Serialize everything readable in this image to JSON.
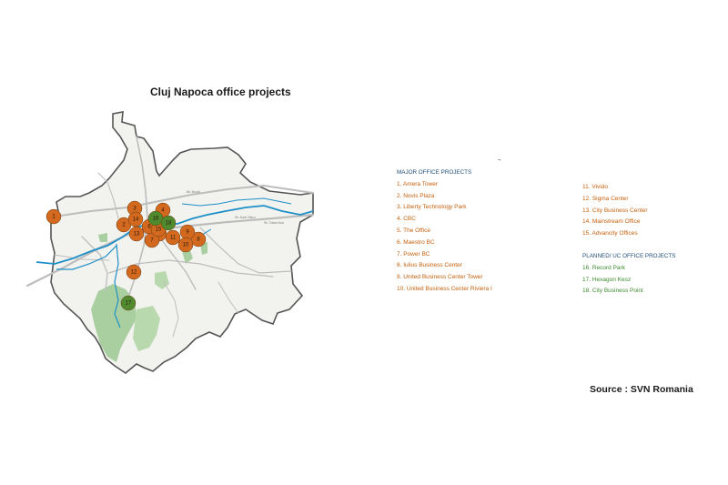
{
  "title": "Cluj Napoca office projects",
  "source": "Source : SVN Romania",
  "tiny_mark": "¬",
  "legend": {
    "major_header": "MAJOR OFFICE PROJECTS",
    "planned_header": "PLANNED/ UC OFFICE PROJECTS",
    "major_left": [
      "1. Amera Tower",
      "2. Novis Plaza",
      "3. Liberty Technology Park",
      "4. CBC",
      "5. The Office",
      "6. Maestro BC",
      "7. Power BC",
      "8. Iulius Business Center",
      "9. United Business Center Tower",
      "10. United Business Center Riviera I"
    ],
    "major_right": [
      "11. Vivido",
      "12. Sigma Center",
      "13. City Business Center",
      "14. Mainstream Office",
      "15. Advancity Offices"
    ],
    "planned": [
      "16. Record Park",
      "17. Hexagon Kesz",
      "18. City Business Point"
    ]
  },
  "colors": {
    "major": "#d2691e",
    "planned": "#4f8a2e",
    "river": "#1f8fc7",
    "park": "#a9cfa0",
    "boundary": "#555555"
  },
  "markers": [
    {
      "label": "1",
      "type": "major"
    },
    {
      "label": "2",
      "type": "major"
    },
    {
      "label": "3",
      "type": "major"
    },
    {
      "label": "4",
      "type": "major"
    },
    {
      "label": "5",
      "type": "major"
    },
    {
      "label": "6",
      "type": "major"
    },
    {
      "label": "7",
      "type": "major"
    },
    {
      "label": "8",
      "type": "major"
    },
    {
      "label": "9",
      "type": "major"
    },
    {
      "label": "10",
      "type": "major"
    },
    {
      "label": "11",
      "type": "major"
    },
    {
      "label": "12",
      "type": "major"
    },
    {
      "label": "13",
      "type": "major"
    },
    {
      "label": "14",
      "type": "major"
    },
    {
      "label": "15",
      "type": "major"
    },
    {
      "label": "16",
      "type": "planned"
    },
    {
      "label": "17",
      "type": "planned"
    },
    {
      "label": "18",
      "type": "planned"
    }
  ]
}
